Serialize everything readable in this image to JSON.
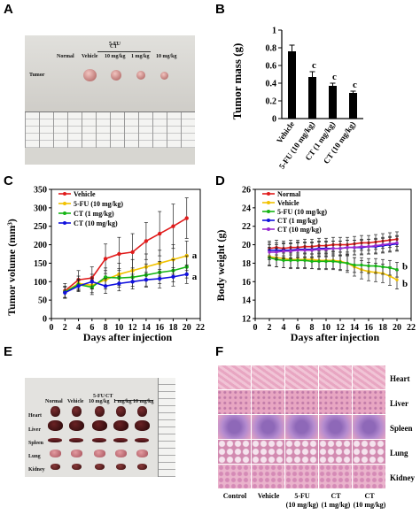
{
  "panels": {
    "A": "A",
    "B": "B",
    "C": "C",
    "D": "D",
    "E": "E",
    "F": "F"
  },
  "photo_a": {
    "group_header": "CT",
    "cols": [
      "Normal",
      "Vehicle",
      "5-FU",
      "1 mg/kg",
      "10 mg/kg"
    ],
    "fu_dose": "10 mg/kg",
    "row_label": "Tumor"
  },
  "photo_e": {
    "cols": [
      "Normal",
      "Vehicle",
      "5-FU",
      "CT"
    ],
    "doses": [
      "10 mg/kg",
      "1 mg/kg",
      "10 mg/kg"
    ],
    "rows": [
      "Heart",
      "Liver",
      "Spleen",
      "Lung",
      "Kidney"
    ]
  },
  "he_grid": {
    "rows": [
      "Heart",
      "Liver",
      "Spleen",
      "Lung",
      "Kidney"
    ],
    "cols": [
      {
        "line1": "Control",
        "line2": ""
      },
      {
        "line1": "Vehicle",
        "line2": ""
      },
      {
        "line1": "5-FU",
        "line2": "(10 mg/kg)"
      },
      {
        "line1": "CT",
        "line2": "(1 mg/kg)"
      },
      {
        "line1": "CT",
        "line2": "(10 mg/kg)"
      }
    ],
    "colors": {
      "pink": "#e8a6c2",
      "purple": "#8e68b8",
      "lung_bg": "#f5e4ee"
    }
  },
  "chart_data": [
    {
      "panel": "B",
      "type": "bar",
      "ylabel": "Tumor mass (g)",
      "ylim": [
        0,
        1.0
      ],
      "yticks": [
        "0",
        "0.2",
        "0.4",
        "0.6",
        "0.8",
        "1"
      ],
      "categories": [
        "Vehicle",
        "5-FU (10 mg/kg)",
        "CT (1 mg/kg)",
        "CT (10 mg/kg)"
      ],
      "values": [
        0.76,
        0.47,
        0.37,
        0.29
      ],
      "errors": [
        0.07,
        0.06,
        0.03,
        0.02
      ],
      "annotations": [
        "",
        "c",
        "c",
        "c"
      ],
      "color": "#000000"
    },
    {
      "panel": "C",
      "type": "line",
      "xlabel": "Days after injection",
      "ylabel": "Tumor volume (mm³)",
      "xlim": [
        0,
        22
      ],
      "ylim": [
        0,
        350
      ],
      "xticks": [
        "0",
        "2",
        "4",
        "6",
        "8",
        "10",
        "12",
        "14",
        "16",
        "18",
        "20",
        "22"
      ],
      "yticks": [
        "0",
        "50",
        "100",
        "150",
        "200",
        "250",
        "300",
        "350"
      ],
      "x": [
        2,
        4,
        6,
        8,
        10,
        12,
        14,
        16,
        18,
        20
      ],
      "series": [
        {
          "name": "Vehicle",
          "color": "#e01b1b",
          "values": [
            75,
            105,
            110,
            162,
            175,
            180,
            210,
            230,
            250,
            272
          ],
          "errors": [
            20,
            25,
            30,
            40,
            45,
            50,
            50,
            60,
            60,
            55
          ]
        },
        {
          "name": "5-FU (10 mg/kg)",
          "color": "#f2c200",
          "values": [
            72,
            95,
            90,
            105,
            120,
            130,
            140,
            150,
            160,
            170
          ],
          "errors": [
            15,
            20,
            20,
            25,
            30,
            30,
            35,
            35,
            40,
            40
          ]
        },
        {
          "name": "CT (1 mg/kg)",
          "color": "#15b515",
          "values": [
            72,
            92,
            85,
            112,
            110,
            112,
            118,
            125,
            130,
            140
          ],
          "errors": [
            15,
            15,
            20,
            25,
            25,
            25,
            30,
            30,
            30,
            30
          ]
        },
        {
          "name": "CT (10 mg/kg)",
          "color": "#1111dd",
          "values": [
            70,
            88,
            100,
            88,
            95,
            100,
            105,
            108,
            113,
            120
          ],
          "errors": [
            15,
            15,
            20,
            20,
            20,
            20,
            20,
            25,
            25,
            25
          ]
        }
      ],
      "annotations": [
        {
          "text": "a",
          "series": "5-FU (10 mg/kg)"
        },
        {
          "text": "a",
          "series": "CT (10 mg/kg)"
        }
      ]
    },
    {
      "panel": "D",
      "type": "line",
      "xlabel": "Days after injection",
      "ylabel": "Body weight (g)",
      "xlim": [
        0,
        22
      ],
      "ylim": [
        12,
        26
      ],
      "xticks": [
        "0",
        "2",
        "4",
        "6",
        "8",
        "10",
        "12",
        "14",
        "16",
        "18",
        "20",
        "22"
      ],
      "yticks": [
        "12",
        "14",
        "16",
        "18",
        "20",
        "22",
        "24",
        "26"
      ],
      "x": [
        2,
        3,
        4,
        5,
        6,
        7,
        8,
        9,
        10,
        11,
        12,
        13,
        14,
        15,
        16,
        17,
        18,
        19,
        20
      ],
      "series": [
        {
          "name": "Normal",
          "color": "#e01b1b",
          "values": [
            19.6,
            19.7,
            19.6,
            19.7,
            19.7,
            19.8,
            19.8,
            19.9,
            19.9,
            20.0,
            20.0,
            20.0,
            20.1,
            20.2,
            20.2,
            20.3,
            20.4,
            20.5,
            20.6
          ],
          "errors": [
            0.8,
            0.8,
            0.8,
            0.8,
            0.8,
            0.8,
            0.8,
            0.8,
            0.8,
            0.8,
            0.8,
            0.8,
            0.8,
            0.8,
            0.8,
            0.8,
            0.8,
            0.8,
            0.8
          ]
        },
        {
          "name": "Vehicle",
          "color": "#f2c200",
          "values": [
            18.7,
            18.6,
            18.5,
            18.4,
            18.4,
            18.4,
            18.4,
            18.3,
            18.3,
            18.3,
            18.2,
            18.0,
            17.6,
            17.3,
            17.1,
            17.0,
            16.9,
            16.6,
            16.2
          ],
          "errors": [
            1.0,
            1.0,
            1.0,
            1.0,
            1.0,
            1.0,
            1.0,
            1.0,
            1.0,
            1.0,
            1.0,
            1.0,
            1.0,
            1.0,
            1.0,
            1.0,
            1.0,
            1.0,
            1.0
          ]
        },
        {
          "name": "5-FU (10 mg/kg)",
          "color": "#15b515",
          "values": [
            18.6,
            18.4,
            18.3,
            18.3,
            18.3,
            18.3,
            18.2,
            18.2,
            18.2,
            18.2,
            18.1,
            18.0,
            17.8,
            17.8,
            17.7,
            17.7,
            17.6,
            17.5,
            17.3
          ],
          "errors": [
            0.8,
            0.8,
            0.8,
            0.8,
            0.8,
            0.8,
            0.8,
            0.8,
            0.8,
            0.8,
            0.8,
            0.8,
            0.8,
            0.8,
            0.8,
            0.8,
            0.8,
            0.8,
            0.8
          ]
        },
        {
          "name": "CT (1 mg/kg)",
          "color": "#1111dd",
          "values": [
            19.4,
            19.4,
            19.4,
            19.4,
            19.5,
            19.5,
            19.5,
            19.6,
            19.6,
            19.6,
            19.6,
            19.7,
            19.7,
            19.7,
            19.8,
            19.8,
            19.9,
            20.0,
            20.1
          ],
          "errors": [
            0.8,
            0.8,
            0.8,
            0.8,
            0.8,
            0.8,
            0.8,
            0.8,
            0.8,
            0.8,
            0.8,
            0.8,
            0.8,
            0.8,
            0.8,
            0.8,
            0.8,
            0.8,
            0.8
          ]
        },
        {
          "name": "CT (10 mg/kg)",
          "color": "#9a2ad0",
          "values": [
            19.2,
            19.2,
            19.3,
            19.3,
            19.4,
            19.4,
            19.4,
            19.5,
            19.5,
            19.6,
            19.6,
            19.7,
            19.7,
            19.8,
            19.8,
            19.9,
            20.0,
            20.1,
            20.2
          ],
          "errors": [
            0.8,
            0.8,
            0.8,
            0.8,
            0.8,
            0.8,
            0.8,
            0.8,
            0.8,
            0.8,
            0.8,
            0.8,
            0.8,
            0.8,
            0.8,
            0.8,
            0.8,
            0.8,
            0.8
          ]
        }
      ],
      "annotations": [
        {
          "text": "b",
          "series": "Vehicle"
        },
        {
          "text": "b",
          "series": "5-FU (10 mg/kg)"
        }
      ]
    }
  ]
}
